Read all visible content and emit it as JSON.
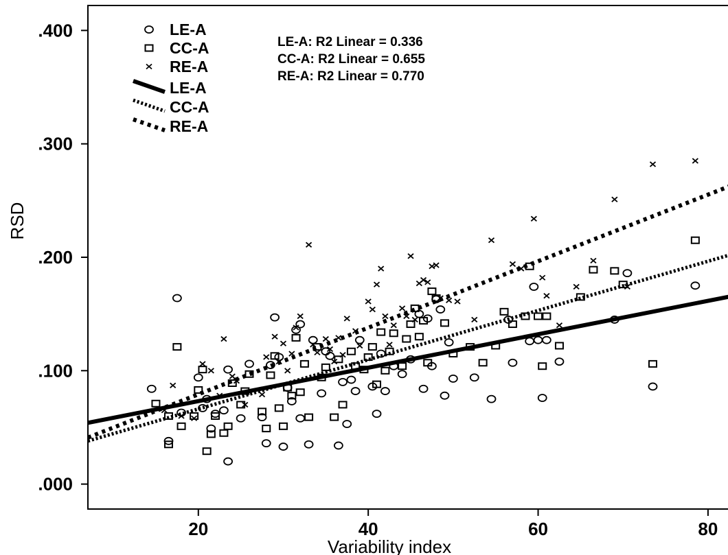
{
  "chart_data": {
    "type": "scatter",
    "xlabel": "Variability index",
    "ylabel": "RSD",
    "xlim": [
      7,
      83
    ],
    "ylim": [
      -0.022,
      0.422
    ],
    "x_ticks": [
      {
        "value": 20,
        "label": "20"
      },
      {
        "value": 40,
        "label": "40"
      },
      {
        "value": 60,
        "label": "60"
      },
      {
        "value": 80,
        "label": "80"
      }
    ],
    "y_ticks": [
      {
        "value": 0.0,
        "label": ".000"
      },
      {
        "value": 0.1,
        "label": ".100"
      },
      {
        "value": 0.2,
        "label": ".200"
      },
      {
        "value": 0.3,
        "label": ".300"
      },
      {
        "value": 0.4,
        "label": ".400"
      }
    ],
    "grid": false,
    "legend_position": "top-left",
    "legend": [
      {
        "label": "LE-A",
        "kind": "marker",
        "marker": "circle"
      },
      {
        "label": "CC-A",
        "kind": "marker",
        "marker": "square"
      },
      {
        "label": "RE-A",
        "kind": "marker",
        "marker": "cross"
      },
      {
        "label": "LE-A",
        "kind": "line",
        "style": "solid"
      },
      {
        "label": "CC-A",
        "kind": "line",
        "style": "dotted-dense"
      },
      {
        "label": "RE-A",
        "kind": "line",
        "style": "dotted-sparse"
      }
    ],
    "annotations": [
      "LE-A: R2 Linear = 0.336",
      "CC-A: R2 Linear = 0.655",
      "RE-A: R2 Linear = 0.770"
    ],
    "fit_lines": [
      {
        "series": "LE-A",
        "style": "solid",
        "x": [
          7,
          83
        ],
        "y": [
          0.054,
          0.166
        ]
      },
      {
        "series": "CC-A",
        "style": "dotted-dense",
        "x": [
          7,
          83
        ],
        "y": [
          0.038,
          0.203
        ]
      },
      {
        "series": "RE-A",
        "style": "dotted-sparse",
        "x": [
          7,
          83
        ],
        "y": [
          0.041,
          0.264
        ]
      }
    ],
    "series": [
      {
        "name": "LE-A",
        "marker": "circle",
        "points": [
          [
            14.5,
            0.084
          ],
          [
            16.5,
            0.038
          ],
          [
            17.5,
            0.164
          ],
          [
            18.0,
            0.063
          ],
          [
            20.0,
            0.094
          ],
          [
            20.5,
            0.067
          ],
          [
            21.0,
            0.075
          ],
          [
            21.5,
            0.049
          ],
          [
            22.0,
            0.062
          ],
          [
            23.0,
            0.065
          ],
          [
            23.5,
            0.101
          ],
          [
            23.5,
            0.02
          ],
          [
            25.0,
            0.058
          ],
          [
            26.0,
            0.106
          ],
          [
            27.5,
            0.059
          ],
          [
            28.0,
            0.036
          ],
          [
            28.5,
            0.105
          ],
          [
            29.0,
            0.147
          ],
          [
            29.5,
            0.112
          ],
          [
            30.0,
            0.033
          ],
          [
            30.5,
            0.085
          ],
          [
            31.0,
            0.073
          ],
          [
            31.5,
            0.136
          ],
          [
            32.0,
            0.058
          ],
          [
            32.0,
            0.141
          ],
          [
            33.0,
            0.035
          ],
          [
            33.5,
            0.127
          ],
          [
            34.5,
            0.08
          ],
          [
            35.0,
            0.117
          ],
          [
            35.5,
            0.113
          ],
          [
            36.5,
            0.034
          ],
          [
            37.0,
            0.09
          ],
          [
            37.5,
            0.053
          ],
          [
            38.0,
            0.092
          ],
          [
            38.5,
            0.082
          ],
          [
            39.0,
            0.127
          ],
          [
            40.5,
            0.086
          ],
          [
            41.0,
            0.062
          ],
          [
            41.5,
            0.115
          ],
          [
            42.0,
            0.082
          ],
          [
            43.0,
            0.104
          ],
          [
            44.0,
            0.097
          ],
          [
            45.0,
            0.11
          ],
          [
            46.0,
            0.15
          ],
          [
            46.5,
            0.084
          ],
          [
            47.0,
            0.146
          ],
          [
            47.5,
            0.104
          ],
          [
            48.0,
            0.163
          ],
          [
            48.5,
            0.154
          ],
          [
            49.0,
            0.078
          ],
          [
            49.5,
            0.125
          ],
          [
            50.0,
            0.093
          ],
          [
            52.5,
            0.094
          ],
          [
            54.5,
            0.075
          ],
          [
            56.5,
            0.145
          ],
          [
            57.0,
            0.107
          ],
          [
            59.0,
            0.126
          ],
          [
            59.5,
            0.174
          ],
          [
            60.0,
            0.127
          ],
          [
            60.5,
            0.076
          ],
          [
            61.0,
            0.127
          ],
          [
            62.5,
            0.108
          ],
          [
            69.0,
            0.145
          ],
          [
            70.5,
            0.186
          ],
          [
            73.5,
            0.086
          ],
          [
            78.5,
            0.175
          ]
        ]
      },
      {
        "name": "CC-A",
        "marker": "square",
        "points": [
          [
            15.0,
            0.071
          ],
          [
            16.5,
            0.035
          ],
          [
            16.5,
            0.06
          ],
          [
            17.5,
            0.121
          ],
          [
            18.0,
            0.051
          ],
          [
            19.5,
            0.06
          ],
          [
            20.0,
            0.083
          ],
          [
            20.5,
            0.101
          ],
          [
            21.0,
            0.029
          ],
          [
            21.5,
            0.044
          ],
          [
            22.0,
            0.06
          ],
          [
            23.0,
            0.045
          ],
          [
            23.5,
            0.051
          ],
          [
            24.0,
            0.089
          ],
          [
            25.0,
            0.07
          ],
          [
            25.5,
            0.082
          ],
          [
            26.0,
            0.097
          ],
          [
            27.5,
            0.064
          ],
          [
            28.0,
            0.049
          ],
          [
            28.5,
            0.096
          ],
          [
            29.0,
            0.113
          ],
          [
            29.5,
            0.067
          ],
          [
            30.0,
            0.051
          ],
          [
            30.5,
            0.085
          ],
          [
            31.0,
            0.078
          ],
          [
            31.5,
            0.129
          ],
          [
            32.0,
            0.081
          ],
          [
            32.5,
            0.106
          ],
          [
            33.0,
            0.059
          ],
          [
            34.0,
            0.121
          ],
          [
            34.5,
            0.094
          ],
          [
            35.0,
            0.103
          ],
          [
            36.0,
            0.059
          ],
          [
            36.5,
            0.11
          ],
          [
            37.0,
            0.07
          ],
          [
            38.0,
            0.117
          ],
          [
            38.5,
            0.104
          ],
          [
            39.5,
            0.101
          ],
          [
            40.0,
            0.112
          ],
          [
            40.5,
            0.121
          ],
          [
            41.0,
            0.088
          ],
          [
            41.5,
            0.134
          ],
          [
            42.0,
            0.1
          ],
          [
            42.5,
            0.117
          ],
          [
            43.0,
            0.133
          ],
          [
            44.0,
            0.104
          ],
          [
            44.5,
            0.128
          ],
          [
            45.0,
            0.141
          ],
          [
            45.5,
            0.155
          ],
          [
            46.0,
            0.13
          ],
          [
            46.5,
            0.144
          ],
          [
            47.0,
            0.107
          ],
          [
            47.5,
            0.17
          ],
          [
            48.0,
            0.164
          ],
          [
            49.0,
            0.142
          ],
          [
            50.0,
            0.115
          ],
          [
            52.0,
            0.121
          ],
          [
            53.5,
            0.107
          ],
          [
            55.0,
            0.122
          ],
          [
            56.0,
            0.152
          ],
          [
            57.0,
            0.141
          ],
          [
            58.5,
            0.148
          ],
          [
            59.0,
            0.192
          ],
          [
            60.0,
            0.148
          ],
          [
            60.5,
            0.104
          ],
          [
            61.0,
            0.148
          ],
          [
            62.5,
            0.122
          ],
          [
            65.0,
            0.165
          ],
          [
            66.5,
            0.189
          ],
          [
            69.0,
            0.188
          ],
          [
            70.0,
            0.176
          ],
          [
            73.5,
            0.106
          ],
          [
            78.5,
            0.215
          ]
        ]
      },
      {
        "name": "RE-A",
        "marker": "cross",
        "points": [
          [
            16.0,
            0.065
          ],
          [
            17.0,
            0.087
          ],
          [
            18.0,
            0.06
          ],
          [
            19.5,
            0.058
          ],
          [
            20.5,
            0.106
          ],
          [
            21.5,
            0.1
          ],
          [
            22.5,
            0.078
          ],
          [
            23.0,
            0.128
          ],
          [
            24.0,
            0.095
          ],
          [
            24.5,
            0.091
          ],
          [
            25.5,
            0.07
          ],
          [
            27.5,
            0.079
          ],
          [
            28.0,
            0.112
          ],
          [
            29.0,
            0.13
          ],
          [
            29.5,
            0.108
          ],
          [
            30.0,
            0.124
          ],
          [
            30.5,
            0.1
          ],
          [
            31.0,
            0.115
          ],
          [
            31.5,
            0.138
          ],
          [
            32.0,
            0.148
          ],
          [
            33.0,
            0.211
          ],
          [
            33.5,
            0.123
          ],
          [
            34.0,
            0.116
          ],
          [
            35.0,
            0.128
          ],
          [
            35.5,
            0.119
          ],
          [
            36.0,
            0.108
          ],
          [
            36.5,
            0.129
          ],
          [
            37.0,
            0.114
          ],
          [
            37.5,
            0.146
          ],
          [
            38.5,
            0.135
          ],
          [
            39.0,
            0.122
          ],
          [
            40.0,
            0.161
          ],
          [
            40.5,
            0.154
          ],
          [
            41.0,
            0.176
          ],
          [
            41.5,
            0.19
          ],
          [
            42.0,
            0.148
          ],
          [
            42.5,
            0.123
          ],
          [
            43.0,
            0.14
          ],
          [
            44.0,
            0.155
          ],
          [
            44.5,
            0.148
          ],
          [
            45.0,
            0.201
          ],
          [
            45.5,
            0.145
          ],
          [
            46.0,
            0.177
          ],
          [
            46.5,
            0.18
          ],
          [
            47.0,
            0.178
          ],
          [
            47.5,
            0.192
          ],
          [
            48.0,
            0.193
          ],
          [
            48.5,
            0.164
          ],
          [
            49.5,
            0.162
          ],
          [
            50.5,
            0.161
          ],
          [
            52.5,
            0.145
          ],
          [
            54.5,
            0.215
          ],
          [
            57.0,
            0.194
          ],
          [
            58.0,
            0.19
          ],
          [
            59.5,
            0.234
          ],
          [
            60.5,
            0.182
          ],
          [
            61.0,
            0.166
          ],
          [
            62.5,
            0.14
          ],
          [
            64.5,
            0.174
          ],
          [
            66.5,
            0.197
          ],
          [
            69.0,
            0.251
          ],
          [
            70.5,
            0.174
          ],
          [
            73.5,
            0.282
          ],
          [
            78.5,
            0.285
          ]
        ]
      }
    ]
  }
}
